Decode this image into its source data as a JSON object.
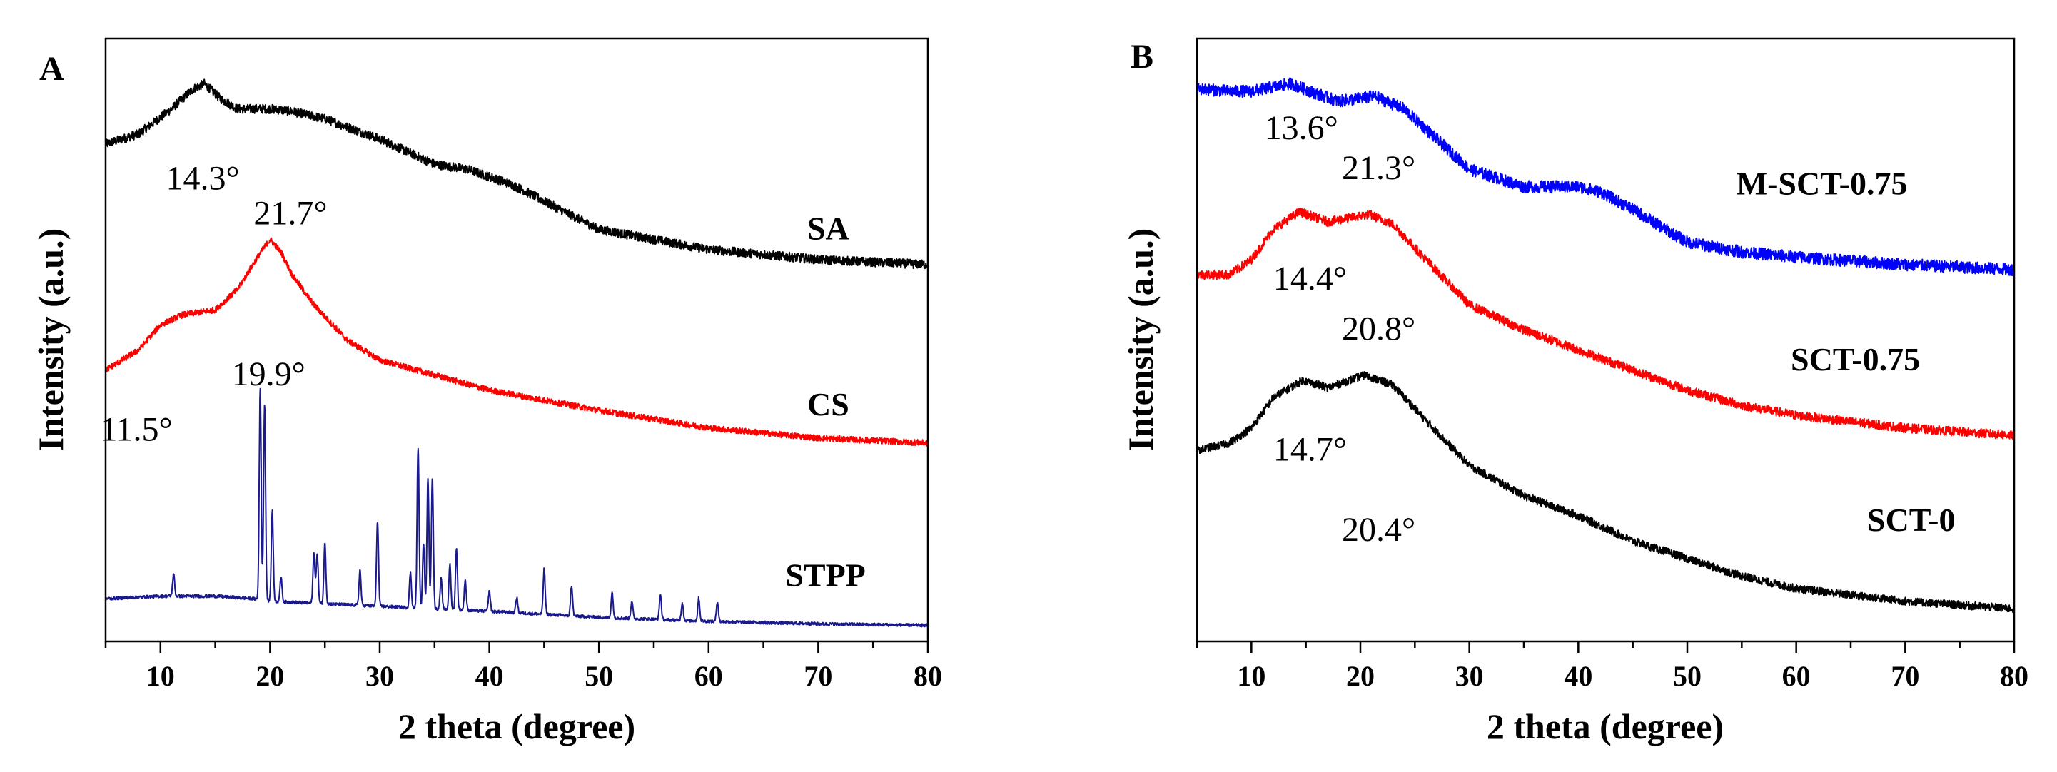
{
  "chart_data": [
    {
      "type": "line",
      "panel": "A",
      "xlabel": "2 theta (degree)",
      "ylabel": "Intensity (a.u.)",
      "xlim": [
        5,
        80
      ],
      "xticks": [
        10,
        20,
        30,
        40,
        50,
        60,
        70,
        80
      ],
      "ylim": [
        0,
        12
      ],
      "y_ticks_shown": false,
      "series": [
        {
          "name": "SA",
          "color": "#000000",
          "noise": 0.09,
          "x": [
            5,
            8,
            11,
            13,
            14,
            15.5,
            17,
            20,
            22,
            25,
            30,
            35,
            38,
            42,
            50,
            60,
            70,
            80
          ],
          "y": [
            9.9,
            10.1,
            10.6,
            11.0,
            11.1,
            10.8,
            10.6,
            10.6,
            10.55,
            10.4,
            10.0,
            9.5,
            9.4,
            9.1,
            8.2,
            7.8,
            7.6,
            7.5
          ]
        },
        {
          "name": "CS",
          "color": "#ff0000",
          "noise": 0.06,
          "x": [
            5,
            8,
            10,
            12,
            15,
            17,
            19,
            20,
            21,
            22,
            24,
            27,
            30,
            35,
            40,
            50,
            60,
            70,
            80
          ],
          "y": [
            5.4,
            5.8,
            6.3,
            6.5,
            6.6,
            7.0,
            7.7,
            8.0,
            7.75,
            7.3,
            6.7,
            6.0,
            5.6,
            5.3,
            5.0,
            4.6,
            4.25,
            4.05,
            3.95
          ]
        },
        {
          "name": "STPP",
          "color": "#1a1a8c",
          "noise": 0.03,
          "x": [
            5,
            10,
            15,
            18.5,
            20,
            25,
            30,
            40,
            50,
            60,
            70,
            80
          ],
          "y": [
            0.85,
            0.9,
            0.9,
            0.85,
            0.8,
            0.75,
            0.7,
            0.6,
            0.48,
            0.4,
            0.35,
            0.32
          ],
          "peaks": [
            [
              11.2,
              0.45
            ],
            [
              19.1,
              4.2
            ],
            [
              19.5,
              3.9
            ],
            [
              20.2,
              1.8
            ],
            [
              21.0,
              0.5
            ],
            [
              24.0,
              1.0
            ],
            [
              24.3,
              1.0
            ],
            [
              25.0,
              1.2
            ],
            [
              28.2,
              0.7
            ],
            [
              29.8,
              1.7
            ],
            [
              32.8,
              0.7
            ],
            [
              33.5,
              3.2
            ],
            [
              34.0,
              1.3
            ],
            [
              34.4,
              2.6
            ],
            [
              34.8,
              2.6
            ],
            [
              35.6,
              0.6
            ],
            [
              36.4,
              0.9
            ],
            [
              37.0,
              1.2
            ],
            [
              37.8,
              0.6
            ],
            [
              40.0,
              0.4
            ],
            [
              42.5,
              0.3
            ],
            [
              45.0,
              0.9
            ],
            [
              47.5,
              0.6
            ],
            [
              51.2,
              0.5
            ],
            [
              53.0,
              0.35
            ],
            [
              55.6,
              0.5
            ],
            [
              57.6,
              0.35
            ],
            [
              59.1,
              0.45
            ],
            [
              60.8,
              0.4
            ]
          ]
        }
      ],
      "series_labels": [
        {
          "text": "SA",
          "at": [
            69,
            8.0
          ]
        },
        {
          "text": "CS",
          "at": [
            69,
            4.5
          ]
        },
        {
          "text": "STPP",
          "at": [
            67,
            1.1
          ]
        }
      ],
      "annotations": [
        {
          "text": "14.3°",
          "at": [
            10.5,
            9.0
          ]
        },
        {
          "text": "21.7°",
          "at": [
            18.5,
            8.3
          ]
        },
        {
          "text": "19.9°",
          "at": [
            16.5,
            5.1
          ]
        },
        {
          "text": "11.5°",
          "at": [
            4.5,
            4.0
          ]
        }
      ]
    },
    {
      "type": "line",
      "panel": "B",
      "xlabel": "2 theta (degree)",
      "ylabel": "Intensity (a.u.)",
      "xlim": [
        5,
        80
      ],
      "xticks": [
        10,
        20,
        30,
        40,
        50,
        60,
        70,
        80
      ],
      "ylim": [
        0,
        12
      ],
      "y_ticks_shown": false,
      "series": [
        {
          "name": "M-SCT-0.75",
          "color": "#0000ff",
          "noise": 0.12,
          "x": [
            5,
            8,
            10,
            13.6,
            16,
            18,
            21.3,
            24,
            27,
            30,
            35,
            40,
            42,
            45,
            48,
            50,
            55,
            60,
            70,
            80
          ],
          "y": [
            11.0,
            10.95,
            10.95,
            11.1,
            10.9,
            10.75,
            10.85,
            10.6,
            10.0,
            9.4,
            9.05,
            9.05,
            8.95,
            8.6,
            8.2,
            7.95,
            7.75,
            7.65,
            7.5,
            7.4
          ]
        },
        {
          "name": "SCT-0.75",
          "color": "#ff0000",
          "noise": 0.09,
          "x": [
            5,
            8,
            10,
            12,
            14.4,
            17,
            20.8,
            23,
            26,
            30,
            35,
            40,
            45,
            50,
            55,
            60,
            70,
            80
          ],
          "y": [
            7.3,
            7.3,
            7.6,
            8.2,
            8.55,
            8.35,
            8.5,
            8.3,
            7.6,
            6.7,
            6.2,
            5.8,
            5.4,
            5.0,
            4.7,
            4.5,
            4.25,
            4.1
          ]
        },
        {
          "name": "SCT-0",
          "color": "#000000",
          "noise": 0.08,
          "x": [
            5,
            8,
            10,
            12,
            14.7,
            17,
            20.4,
            23,
            26,
            30,
            35,
            40,
            45,
            50,
            55,
            60,
            70,
            80
          ],
          "y": [
            3.8,
            3.95,
            4.25,
            4.85,
            5.2,
            5.05,
            5.3,
            5.1,
            4.4,
            3.5,
            2.9,
            2.5,
            2.0,
            1.65,
            1.3,
            1.05,
            0.8,
            0.65
          ]
        }
      ],
      "series_labels": [
        {
          "text": "M-SCT-0.75",
          "at": [
            54.5,
            8.9
          ]
        },
        {
          "text": "SCT-0.75",
          "at": [
            59.5,
            5.4
          ]
        },
        {
          "text": "SCT-0",
          "at": [
            66.5,
            2.2
          ]
        }
      ],
      "annotations": [
        {
          "text": "13.6°",
          "at": [
            11.2,
            10.0
          ]
        },
        {
          "text": "21.3°",
          "at": [
            18.3,
            9.2
          ]
        },
        {
          "text": "14.4°",
          "at": [
            12.0,
            7.0
          ]
        },
        {
          "text": "20.8°",
          "at": [
            18.3,
            6.0
          ]
        },
        {
          "text": "14.7°",
          "at": [
            12.0,
            3.6
          ]
        },
        {
          "text": "20.4°",
          "at": [
            18.3,
            2.0
          ]
        }
      ]
    }
  ]
}
